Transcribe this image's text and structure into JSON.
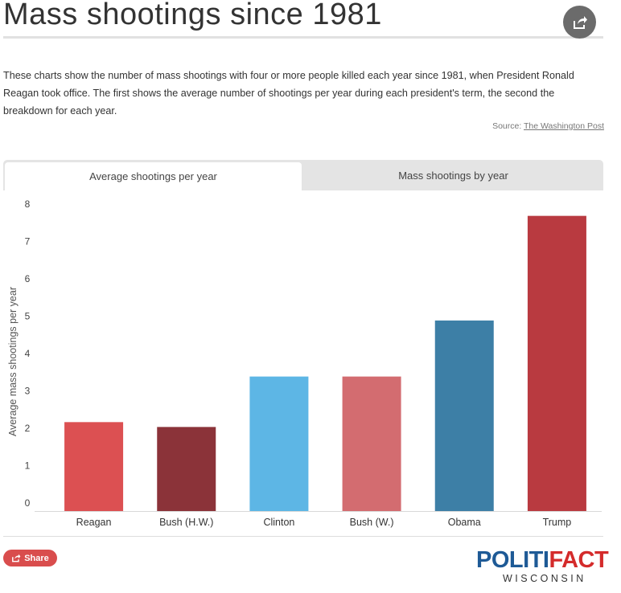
{
  "header": {
    "title": "Mass shootings since 1981",
    "description": "These charts show the number of mass shootings with four or more people killed each year since 1981, when President Ronald Reagan took office. The first shows the average number of shootings per year during each president's term, the second the breakdown for each year.",
    "source_label": "Source:",
    "source_link": "The Washington Post",
    "share_icon": "share-icon"
  },
  "tabs": [
    {
      "label": "Average shootings per year",
      "active": true
    },
    {
      "label": "Mass shootings by year",
      "active": false
    }
  ],
  "chart_data": {
    "type": "bar",
    "categories": [
      "Reagan",
      "Bush (H.W.)",
      "Clinton",
      "Bush (W.)",
      "Obama",
      "Trump"
    ],
    "values": [
      2.38,
      2.25,
      3.6,
      3.6,
      5.1,
      7.9
    ],
    "colors": [
      "#dc5052",
      "#8b3339",
      "#5db6e5",
      "#d36c70",
      "#3d7fa6",
      "#b93a40"
    ],
    "ylabel": "Average mass shootings per year",
    "ylim": [
      0,
      8
    ],
    "yticks": [
      0,
      1,
      2,
      3,
      4,
      5,
      6,
      7,
      8
    ],
    "grid": false
  },
  "footer": {
    "share_label": "Share",
    "logo_left": "POLITI",
    "logo_right": "FACT",
    "logo_sub": "WISCONSIN"
  }
}
